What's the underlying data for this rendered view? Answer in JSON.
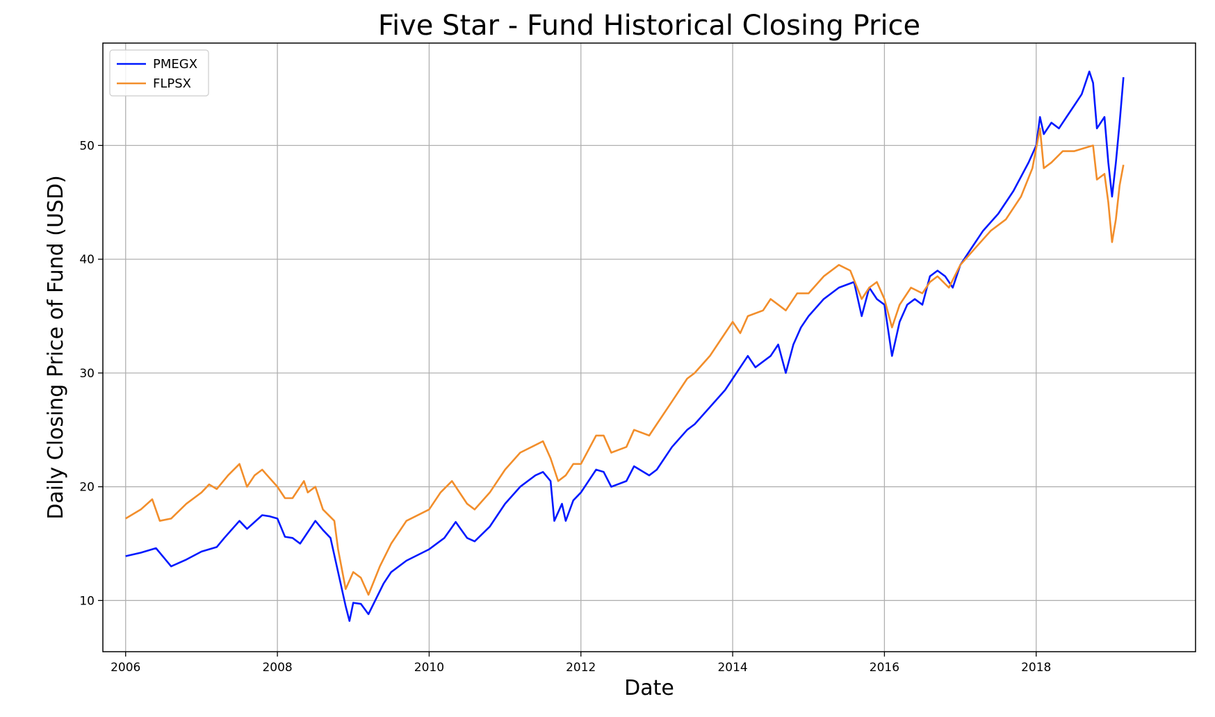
{
  "chart_data": {
    "type": "line",
    "title": "Five Star - Fund Historical Closing Price",
    "xlabel": "Date",
    "ylabel": "Daily Closing Price of Fund (USD)",
    "xlim": [
      2005.7,
      2020.1
    ],
    "ylim": [
      5.5,
      59
    ],
    "xticks": [
      2006,
      2008,
      2010,
      2012,
      2014,
      2016,
      2018
    ],
    "yticks": [
      10,
      20,
      30,
      40,
      50
    ],
    "grid": true,
    "legend_position": "top-left",
    "series": [
      {
        "name": "PMEGX",
        "color": "#0019ff",
        "points": [
          [
            2006.0,
            13.9
          ],
          [
            2006.2,
            14.2
          ],
          [
            2006.4,
            14.6
          ],
          [
            2006.5,
            13.8
          ],
          [
            2006.6,
            13.0
          ],
          [
            2006.8,
            13.6
          ],
          [
            2007.0,
            14.3
          ],
          [
            2007.2,
            14.7
          ],
          [
            2007.3,
            15.5
          ],
          [
            2007.5,
            17.0
          ],
          [
            2007.6,
            16.3
          ],
          [
            2007.8,
            17.5
          ],
          [
            2007.9,
            17.4
          ],
          [
            2008.0,
            17.2
          ],
          [
            2008.1,
            15.6
          ],
          [
            2008.2,
            15.5
          ],
          [
            2008.3,
            15.0
          ],
          [
            2008.5,
            17.0
          ],
          [
            2008.6,
            16.2
          ],
          [
            2008.7,
            15.5
          ],
          [
            2008.8,
            12.5
          ],
          [
            2008.9,
            9.5
          ],
          [
            2008.95,
            8.2
          ],
          [
            2009.0,
            9.8
          ],
          [
            2009.1,
            9.7
          ],
          [
            2009.2,
            8.8
          ],
          [
            2009.4,
            11.5
          ],
          [
            2009.5,
            12.5
          ],
          [
            2009.7,
            13.5
          ],
          [
            2010.0,
            14.5
          ],
          [
            2010.2,
            15.5
          ],
          [
            2010.35,
            16.9
          ],
          [
            2010.5,
            15.5
          ],
          [
            2010.6,
            15.2
          ],
          [
            2010.8,
            16.5
          ],
          [
            2011.0,
            18.5
          ],
          [
            2011.2,
            20.0
          ],
          [
            2011.4,
            21.0
          ],
          [
            2011.5,
            21.3
          ],
          [
            2011.6,
            20.5
          ],
          [
            2011.65,
            17.0
          ],
          [
            2011.75,
            18.5
          ],
          [
            2011.8,
            17.0
          ],
          [
            2011.9,
            18.8
          ],
          [
            2012.0,
            19.5
          ],
          [
            2012.2,
            21.5
          ],
          [
            2012.3,
            21.3
          ],
          [
            2012.4,
            20.0
          ],
          [
            2012.6,
            20.5
          ],
          [
            2012.7,
            21.8
          ],
          [
            2012.9,
            21.0
          ],
          [
            2013.0,
            21.5
          ],
          [
            2013.2,
            23.5
          ],
          [
            2013.4,
            25.0
          ],
          [
            2013.5,
            25.5
          ],
          [
            2013.7,
            27.0
          ],
          [
            2013.9,
            28.5
          ],
          [
            2014.0,
            29.5
          ],
          [
            2014.2,
            31.5
          ],
          [
            2014.3,
            30.5
          ],
          [
            2014.5,
            31.5
          ],
          [
            2014.6,
            32.5
          ],
          [
            2014.7,
            30.0
          ],
          [
            2014.8,
            32.5
          ],
          [
            2014.9,
            34.0
          ],
          [
            2015.0,
            35.0
          ],
          [
            2015.2,
            36.5
          ],
          [
            2015.4,
            37.5
          ],
          [
            2015.6,
            38.0
          ],
          [
            2015.7,
            35.0
          ],
          [
            2015.8,
            37.5
          ],
          [
            2015.9,
            36.5
          ],
          [
            2016.0,
            36.0
          ],
          [
            2016.1,
            31.5
          ],
          [
            2016.2,
            34.5
          ],
          [
            2016.3,
            36.0
          ],
          [
            2016.4,
            36.5
          ],
          [
            2016.5,
            36.0
          ],
          [
            2016.6,
            38.5
          ],
          [
            2016.7,
            39.0
          ],
          [
            2016.8,
            38.5
          ],
          [
            2016.9,
            37.5
          ],
          [
            2017.0,
            39.5
          ],
          [
            2017.1,
            40.5
          ],
          [
            2017.3,
            42.5
          ],
          [
            2017.5,
            44.0
          ],
          [
            2017.7,
            46.0
          ],
          [
            2017.9,
            48.5
          ],
          [
            2018.0,
            50.0
          ],
          [
            2018.05,
            52.5
          ],
          [
            2018.1,
            51.0
          ],
          [
            2018.2,
            52.0
          ],
          [
            2018.3,
            51.5
          ],
          [
            2018.4,
            52.5
          ],
          [
            2018.5,
            53.5
          ],
          [
            2018.6,
            54.5
          ],
          [
            2018.7,
            56.5
          ],
          [
            2018.75,
            55.5
          ],
          [
            2018.8,
            51.5
          ],
          [
            2018.9,
            52.5
          ],
          [
            2018.95,
            48.5
          ],
          [
            2019.0,
            45.5
          ],
          [
            2019.05,
            48.5
          ],
          [
            2019.1,
            52.0
          ],
          [
            2019.15,
            56.0
          ]
        ]
      },
      {
        "name": "FLPSX",
        "color": "#f28e2b",
        "points": [
          [
            2006.0,
            17.2
          ],
          [
            2006.2,
            18.0
          ],
          [
            2006.35,
            18.9
          ],
          [
            2006.45,
            17.0
          ],
          [
            2006.6,
            17.2
          ],
          [
            2006.8,
            18.5
          ],
          [
            2007.0,
            19.5
          ],
          [
            2007.1,
            20.2
          ],
          [
            2007.2,
            19.8
          ],
          [
            2007.35,
            21.0
          ],
          [
            2007.5,
            22.0
          ],
          [
            2007.6,
            20.0
          ],
          [
            2007.7,
            21.0
          ],
          [
            2007.8,
            21.5
          ],
          [
            2008.0,
            20.0
          ],
          [
            2008.1,
            19.0
          ],
          [
            2008.2,
            19.0
          ],
          [
            2008.35,
            20.5
          ],
          [
            2008.4,
            19.5
          ],
          [
            2008.5,
            20.0
          ],
          [
            2008.6,
            18.0
          ],
          [
            2008.75,
            17.0
          ],
          [
            2008.8,
            14.5
          ],
          [
            2008.9,
            11.0
          ],
          [
            2009.0,
            12.5
          ],
          [
            2009.1,
            12.0
          ],
          [
            2009.2,
            10.5
          ],
          [
            2009.35,
            13.0
          ],
          [
            2009.5,
            15.0
          ],
          [
            2009.7,
            17.0
          ],
          [
            2010.0,
            18.0
          ],
          [
            2010.15,
            19.5
          ],
          [
            2010.3,
            20.5
          ],
          [
            2010.5,
            18.5
          ],
          [
            2010.6,
            18.0
          ],
          [
            2010.8,
            19.5
          ],
          [
            2011.0,
            21.5
          ],
          [
            2011.2,
            23.0
          ],
          [
            2011.35,
            23.5
          ],
          [
            2011.5,
            24.0
          ],
          [
            2011.6,
            22.5
          ],
          [
            2011.7,
            20.5
          ],
          [
            2011.8,
            21.0
          ],
          [
            2011.9,
            22.0
          ],
          [
            2012.0,
            22.0
          ],
          [
            2012.2,
            24.5
          ],
          [
            2012.3,
            24.5
          ],
          [
            2012.4,
            23.0
          ],
          [
            2012.6,
            23.5
          ],
          [
            2012.7,
            25.0
          ],
          [
            2012.9,
            24.5
          ],
          [
            2013.0,
            25.5
          ],
          [
            2013.2,
            27.5
          ],
          [
            2013.4,
            29.5
          ],
          [
            2013.5,
            30.0
          ],
          [
            2013.7,
            31.5
          ],
          [
            2013.9,
            33.5
          ],
          [
            2014.0,
            34.5
          ],
          [
            2014.1,
            33.5
          ],
          [
            2014.2,
            35.0
          ],
          [
            2014.4,
            35.5
          ],
          [
            2014.5,
            36.5
          ],
          [
            2014.6,
            36.0
          ],
          [
            2014.7,
            35.5
          ],
          [
            2014.85,
            37.0
          ],
          [
            2015.0,
            37.0
          ],
          [
            2015.2,
            38.5
          ],
          [
            2015.4,
            39.5
          ],
          [
            2015.55,
            39.0
          ],
          [
            2015.7,
            36.5
          ],
          [
            2015.8,
            37.5
          ],
          [
            2015.9,
            38.0
          ],
          [
            2016.0,
            36.5
          ],
          [
            2016.1,
            34.0
          ],
          [
            2016.2,
            36.0
          ],
          [
            2016.35,
            37.5
          ],
          [
            2016.5,
            37.0
          ],
          [
            2016.6,
            38.0
          ],
          [
            2016.7,
            38.5
          ],
          [
            2016.85,
            37.5
          ],
          [
            2017.0,
            39.5
          ],
          [
            2017.2,
            41.0
          ],
          [
            2017.4,
            42.5
          ],
          [
            2017.6,
            43.5
          ],
          [
            2017.8,
            45.5
          ],
          [
            2017.95,
            48.0
          ],
          [
            2018.05,
            51.5
          ],
          [
            2018.1,
            48.0
          ],
          [
            2018.2,
            48.5
          ],
          [
            2018.35,
            49.5
          ],
          [
            2018.5,
            49.5
          ],
          [
            2018.65,
            49.8
          ],
          [
            2018.75,
            50.0
          ],
          [
            2018.8,
            47.0
          ],
          [
            2018.9,
            47.5
          ],
          [
            2018.95,
            45.0
          ],
          [
            2019.0,
            41.5
          ],
          [
            2019.05,
            43.5
          ],
          [
            2019.1,
            46.5
          ],
          [
            2019.15,
            48.3
          ]
        ]
      }
    ]
  }
}
